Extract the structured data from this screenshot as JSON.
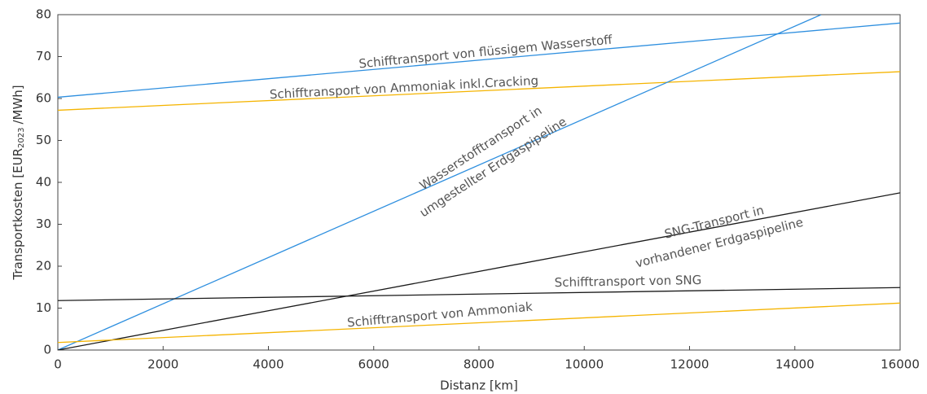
{
  "chart_data": {
    "type": "line",
    "xlabel": "Distanz [km]",
    "ylabel": {
      "text": "Transportkosten [EUR",
      "sub": "2023",
      "tail": "/MWh]"
    },
    "xlim": [
      0,
      16000
    ],
    "ylim": [
      0,
      80
    ],
    "xticks": [
      0,
      2000,
      4000,
      6000,
      8000,
      10000,
      12000,
      14000,
      16000
    ],
    "yticks": [
      0,
      10,
      20,
      30,
      40,
      50,
      60,
      70,
      80
    ],
    "grid": false,
    "series": [
      {
        "name": "Schifftransport von flüssigem Wasserstoff",
        "color": "#2e8fdf",
        "x": [
          0,
          16000
        ],
        "values": [
          60.3,
          78
        ]
      },
      {
        "name": "Schifftransport von Ammoniak inkl.Cracking",
        "color": "#f5b400",
        "x": [
          0,
          16000
        ],
        "values": [
          57.2,
          66.4
        ]
      },
      {
        "name": "Wasserstofftransport in umgestellter Erdgaspipeline",
        "color": "#2e8fdf",
        "x": [
          0,
          14500
        ],
        "values": [
          0,
          80
        ]
      },
      {
        "name": "SNG-Transport in vorhandener Erdgaspipeline",
        "color": "#1a1a1a",
        "x": [
          0,
          16000
        ],
        "values": [
          0,
          37.5
        ]
      },
      {
        "name": "Schifftransport von SNG",
        "color": "#1a1a1a",
        "x": [
          0,
          16000
        ],
        "values": [
          11.8,
          14.9
        ]
      },
      {
        "name": "Schifftransport von Ammoniak",
        "color": "#f5b400",
        "x": [
          0,
          16000
        ],
        "values": [
          1.8,
          11.2
        ]
      }
    ],
    "annotations": [
      {
        "lines": [
          "Schifftransport von flüssigem Wasserstoff"
        ]
      },
      {
        "lines": [
          "Schifftransport von Ammoniak inkl.Cracking"
        ]
      },
      {
        "lines": [
          "Wasserstofftransport in",
          "umgestellter Erdgaspipeline"
        ]
      },
      {
        "lines": [
          "SNG-Transport in",
          "vorhandener Erdgaspipeline"
        ]
      },
      {
        "lines": [
          "Schifftransport von SNG"
        ]
      },
      {
        "lines": [
          "Schifftransport von Ammoniak"
        ]
      }
    ]
  }
}
